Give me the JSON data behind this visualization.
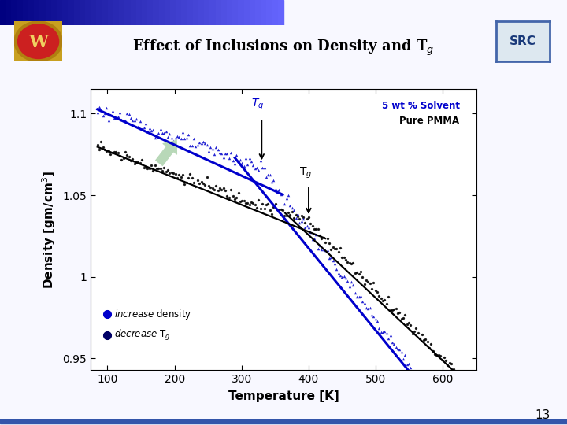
{
  "title": "Effect of Inclusions on Density and T",
  "title_sub": "g",
  "xlabel": "Temperature [K]",
  "ylabel": "Density [gm/cm",
  "ylabel_sup": "3",
  "xlim": [
    75,
    650
  ],
  "ylim": [
    0.943,
    1.115
  ],
  "xticks": [
    100,
    200,
    300,
    400,
    500,
    600
  ],
  "yticks": [
    0.95,
    1.0,
    1.05,
    1.1
  ],
  "ytick_labels": [
    "0.95",
    "1",
    "1.05",
    "1.1"
  ],
  "slide_bg": "#f0f0ff",
  "plot_bg": "#ffffff",
  "color_blue": "#0000cc",
  "color_black": "#111111",
  "color_navy": "#000066",
  "arrow_fill": "#b8d8b8",
  "arrow_edge": "#889988",
  "tg_blue": 330,
  "tg_black": 400,
  "label_5wt": "5 wt % Solvent",
  "label_pure": "Pure PMMA",
  "page_number": "13",
  "pmma_rho0": 1.092,
  "pmma_ag": 0.000145,
  "pmma_ar": 0.00042,
  "solv_rho0": 1.115,
  "solv_ag": 0.000145,
  "solv_ar": 0.00055
}
